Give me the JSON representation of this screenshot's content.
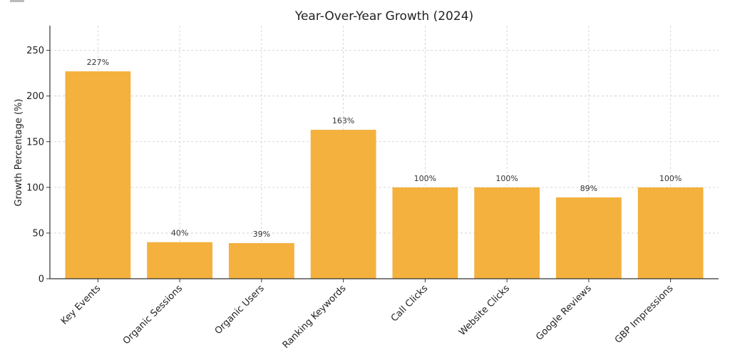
{
  "chart_data": {
    "type": "bar",
    "title": "Year-Over-Year Growth (2024)",
    "xlabel": "",
    "ylabel": "Growth Percentage (%)",
    "categories": [
      "Key Events",
      "Organic Sessions",
      "Organic Users",
      "Ranking Keywords",
      "Call Clicks",
      "Website Clicks",
      "Google Reviews",
      "GBP Impressions"
    ],
    "values": [
      227,
      40,
      39,
      163,
      100,
      100,
      89,
      100
    ],
    "value_labels": [
      "227%",
      "40%",
      "39%",
      "163%",
      "100%",
      "100%",
      "89%",
      "100%"
    ],
    "ylim": [
      0,
      277
    ],
    "yticks": [
      0,
      50,
      100,
      150,
      200,
      250
    ],
    "grid": true,
    "bar_color": "#F4B13D"
  }
}
